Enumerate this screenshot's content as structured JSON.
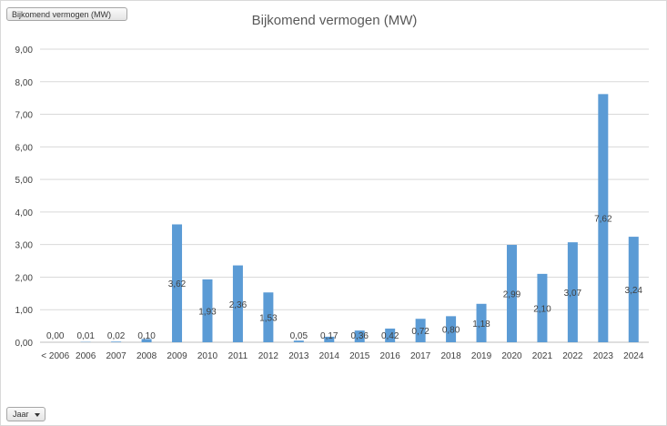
{
  "chart_data": {
    "type": "bar",
    "title": "Bijkomend vermogen (MW)",
    "series_field_button": "Bijkomend vermogen (MW)",
    "axis_field_button": "Jaar",
    "categories": [
      "< 2006",
      "2006",
      "2007",
      "2008",
      "2009",
      "2010",
      "2011",
      "2012",
      "2013",
      "2014",
      "2015",
      "2016",
      "2017",
      "2018",
      "2019",
      "2020",
      "2021",
      "2022",
      "2023",
      "2024"
    ],
    "values": [
      0.0,
      0.01,
      0.02,
      0.1,
      3.62,
      1.93,
      2.36,
      1.53,
      0.05,
      0.17,
      0.36,
      0.42,
      0.72,
      0.8,
      1.18,
      2.99,
      2.1,
      3.07,
      7.62,
      3.24
    ],
    "value_labels": [
      "0,00",
      "0,01",
      "0,02",
      "0,10",
      "3,62",
      "1,93",
      "2,36",
      "1,53",
      "0,05",
      "0,17",
      "0,36",
      "0,42",
      "0,72",
      "0,80",
      "1,18",
      "2,99",
      "2,10",
      "3,07",
      "7,62",
      "3,24"
    ],
    "y_ticks": [
      "0,00",
      "1,00",
      "2,00",
      "3,00",
      "4,00",
      "5,00",
      "6,00",
      "7,00",
      "8,00",
      "9,00"
    ],
    "ylim": [
      0,
      9
    ],
    "grid": true,
    "bar_color": "#5b9bd5"
  }
}
